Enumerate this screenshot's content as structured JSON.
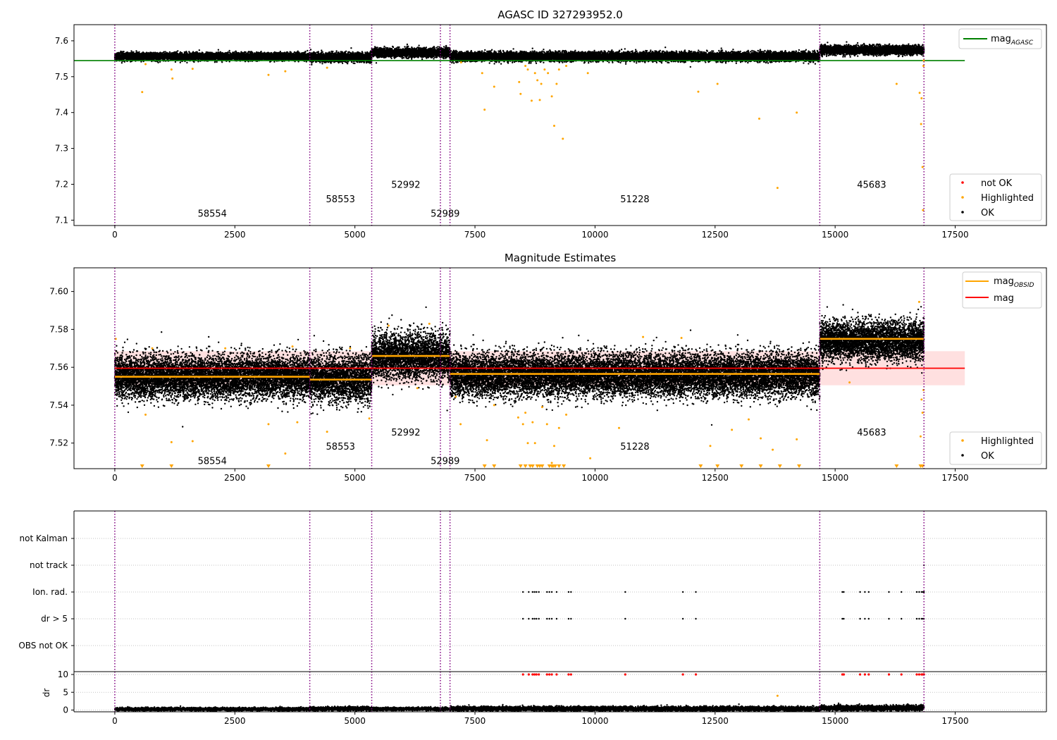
{
  "chart_data": [
    {
      "type": "scatter",
      "title": "AGASC ID 327293952.0",
      "xlim": [
        -850,
        19400
      ],
      "ylim": [
        7.085,
        7.645
      ],
      "xticks": [
        0,
        2500,
        5000,
        7500,
        10000,
        12500,
        15000,
        17500
      ],
      "xtick_labels": [
        "0",
        "2500",
        "5000",
        "7500",
        "10000",
        "12500",
        "15000",
        "17500"
      ],
      "yticks": [
        7.1,
        7.2,
        7.3,
        7.4,
        7.5,
        7.6
      ],
      "ytick_labels": [
        "7.1",
        "7.2",
        "7.3",
        "7.4",
        "7.5",
        "7.6"
      ],
      "obsid_boundaries": [
        0,
        4060,
        5350,
        6780,
        6980,
        14680,
        16850
      ],
      "obsid_labels": [
        {
          "text": "58554",
          "x": 2030,
          "y": 7.11
        },
        {
          "text": "58553",
          "x": 4700,
          "y": 7.15
        },
        {
          "text": "52992",
          "x": 6060,
          "y": 7.19
        },
        {
          "text": "52989",
          "x": 6880,
          "y": 7.11
        },
        {
          "text": "51228",
          "x": 10830,
          "y": 7.15
        },
        {
          "text": "45683",
          "x": 15760,
          "y": 7.19
        }
      ],
      "reference_line": {
        "name": "mag_AGASC",
        "y": 7.545,
        "x": [
          0,
          17700
        ],
        "color": "#008000"
      },
      "segments": [
        {
          "x": [
            0,
            4060
          ],
          "y": 7.556,
          "spread": 0.005
        },
        {
          "x": [
            4060,
            5350
          ],
          "y": 7.554,
          "spread": 0.006
        },
        {
          "x": [
            5350,
            6980
          ],
          "y": 7.567,
          "spread": 0.006
        },
        {
          "x": [
            6980,
            14680
          ],
          "y": 7.556,
          "spread": 0.006
        },
        {
          "x": [
            14680,
            16850
          ],
          "y": 7.574,
          "spread": 0.006
        }
      ],
      "highlighted_points": [
        {
          "x": 570,
          "y": 7.457
        },
        {
          "x": 640,
          "y": 7.535
        },
        {
          "x": 1180,
          "y": 7.52
        },
        {
          "x": 1200,
          "y": 7.495
        },
        {
          "x": 1620,
          "y": 7.522
        },
        {
          "x": 3200,
          "y": 7.505
        },
        {
          "x": 3550,
          "y": 7.515
        },
        {
          "x": 4420,
          "y": 7.525
        },
        {
          "x": 7210,
          "y": 7.54
        },
        {
          "x": 7650,
          "y": 7.51
        },
        {
          "x": 7700,
          "y": 7.408
        },
        {
          "x": 7900,
          "y": 7.472
        },
        {
          "x": 8420,
          "y": 7.485
        },
        {
          "x": 8450,
          "y": 7.452
        },
        {
          "x": 8550,
          "y": 7.53
        },
        {
          "x": 8600,
          "y": 7.52
        },
        {
          "x": 8680,
          "y": 7.433
        },
        {
          "x": 8750,
          "y": 7.51
        },
        {
          "x": 8800,
          "y": 7.49
        },
        {
          "x": 8850,
          "y": 7.435
        },
        {
          "x": 8880,
          "y": 7.48
        },
        {
          "x": 8950,
          "y": 7.52
        },
        {
          "x": 9020,
          "y": 7.51
        },
        {
          "x": 9100,
          "y": 7.445
        },
        {
          "x": 9150,
          "y": 7.363
        },
        {
          "x": 9200,
          "y": 7.48
        },
        {
          "x": 9250,
          "y": 7.52
        },
        {
          "x": 9330,
          "y": 7.327
        },
        {
          "x": 9400,
          "y": 7.53
        },
        {
          "x": 9850,
          "y": 7.51
        },
        {
          "x": 12150,
          "y": 7.458
        },
        {
          "x": 12550,
          "y": 7.48
        },
        {
          "x": 13420,
          "y": 7.383
        },
        {
          "x": 13800,
          "y": 7.19
        },
        {
          "x": 14200,
          "y": 7.4
        },
        {
          "x": 16280,
          "y": 7.48
        },
        {
          "x": 16760,
          "y": 7.455
        },
        {
          "x": 16790,
          "y": 7.368
        },
        {
          "x": 16820,
          "y": 7.248
        },
        {
          "x": 16830,
          "y": 7.128
        },
        {
          "x": 16840,
          "y": 7.53
        },
        {
          "x": 16845,
          "y": 7.545
        },
        {
          "x": 16800,
          "y": 7.44
        }
      ],
      "legend": [
        {
          "label": "mag",
          "subscript": "AGASC",
          "color": "#008000",
          "kind": "line"
        }
      ],
      "legend2": [
        {
          "label": "not OK",
          "color": "#ff0000",
          "kind": "marker"
        },
        {
          "label": "Highlighted",
          "color": "#ffa500",
          "kind": "marker"
        },
        {
          "label": "OK",
          "color": "#000000",
          "kind": "marker"
        }
      ]
    },
    {
      "type": "scatter",
      "title": "Magnitude Estimates",
      "xlim": [
        -850,
        19400
      ],
      "ylim": [
        7.5065,
        7.6125
      ],
      "xticks": [
        0,
        2500,
        5000,
        7500,
        10000,
        12500,
        15000,
        17500
      ],
      "xtick_labels": [
        "0",
        "2500",
        "5000",
        "7500",
        "10000",
        "12500",
        "15000",
        "17500"
      ],
      "yticks": [
        7.52,
        7.54,
        7.56,
        7.58,
        7.6
      ],
      "ytick_labels": [
        "7.52",
        "7.54",
        "7.56",
        "7.58",
        "7.60"
      ],
      "obsid_boundaries": [
        0,
        4060,
        5350,
        6780,
        6980,
        14680,
        16850
      ],
      "obsid_labels": [
        {
          "text": "58554",
          "x": 2030,
          "y": 7.509
        },
        {
          "text": "58553",
          "x": 4700,
          "y": 7.5165
        },
        {
          "text": "52992",
          "x": 6060,
          "y": 7.524
        },
        {
          "text": "52989",
          "x": 6880,
          "y": 7.509
        },
        {
          "text": "51228",
          "x": 10830,
          "y": 7.5165
        },
        {
          "text": "45683",
          "x": 15760,
          "y": 7.524
        }
      ],
      "mag_line": {
        "name": "mag",
        "y": 7.5595,
        "x": [
          0,
          17700
        ],
        "color": "#ff0000",
        "band": [
          7.5505,
          7.5685
        ]
      },
      "obsid_means": [
        {
          "x": [
            0,
            4060
          ],
          "y": 7.555
        },
        {
          "x": [
            4060,
            5350
          ],
          "y": 7.5535
        },
        {
          "x": [
            5350,
            6980
          ],
          "y": 7.566
        },
        {
          "x": [
            6980,
            14680
          ],
          "y": 7.5565
        },
        {
          "x": [
            14680,
            16850
          ],
          "y": 7.575
        }
      ],
      "segments": [
        {
          "x": [
            0,
            4060
          ],
          "y": 7.555,
          "spread": 0.0055
        },
        {
          "x": [
            4060,
            5350
          ],
          "y": 7.554,
          "spread": 0.006
        },
        {
          "x": [
            5350,
            6980
          ],
          "y": 7.566,
          "spread": 0.006
        },
        {
          "x": [
            6980,
            14680
          ],
          "y": 7.556,
          "spread": 0.0055
        },
        {
          "x": [
            14680,
            16850
          ],
          "y": 7.574,
          "spread": 0.005
        }
      ],
      "highlighted_points": [
        {
          "x": 20,
          "y": 7.575
        },
        {
          "x": 640,
          "y": 7.535
        },
        {
          "x": 780,
          "y": 7.57
        },
        {
          "x": 1180,
          "y": 7.5205
        },
        {
          "x": 1620,
          "y": 7.521
        },
        {
          "x": 2300,
          "y": 7.57
        },
        {
          "x": 3200,
          "y": 7.53
        },
        {
          "x": 3550,
          "y": 7.5145
        },
        {
          "x": 3700,
          "y": 7.571
        },
        {
          "x": 3800,
          "y": 7.531
        },
        {
          "x": 4420,
          "y": 7.526
        },
        {
          "x": 4900,
          "y": 7.57
        },
        {
          "x": 5300,
          "y": 7.533
        },
        {
          "x": 5700,
          "y": 7.582
        },
        {
          "x": 6300,
          "y": 7.549
        },
        {
          "x": 6550,
          "y": 7.583
        },
        {
          "x": 7100,
          "y": 7.5445
        },
        {
          "x": 7200,
          "y": 7.53
        },
        {
          "x": 7750,
          "y": 7.5215
        },
        {
          "x": 7900,
          "y": 7.54
        },
        {
          "x": 8400,
          "y": 7.5335
        },
        {
          "x": 8500,
          "y": 7.53
        },
        {
          "x": 8550,
          "y": 7.536
        },
        {
          "x": 8600,
          "y": 7.52
        },
        {
          "x": 8700,
          "y": 7.531
        },
        {
          "x": 8750,
          "y": 7.52
        },
        {
          "x": 8900,
          "y": 7.539
        },
        {
          "x": 9000,
          "y": 7.53
        },
        {
          "x": 9100,
          "y": 7.5095
        },
        {
          "x": 9150,
          "y": 7.5185
        },
        {
          "x": 9250,
          "y": 7.528
        },
        {
          "x": 9400,
          "y": 7.535
        },
        {
          "x": 9900,
          "y": 7.512
        },
        {
          "x": 10500,
          "y": 7.528
        },
        {
          "x": 11000,
          "y": 7.576
        },
        {
          "x": 11800,
          "y": 7.5755
        },
        {
          "x": 12400,
          "y": 7.5185
        },
        {
          "x": 12850,
          "y": 7.527
        },
        {
          "x": 13200,
          "y": 7.5325
        },
        {
          "x": 13450,
          "y": 7.5225
        },
        {
          "x": 13700,
          "y": 7.5165
        },
        {
          "x": 14200,
          "y": 7.522
        },
        {
          "x": 15300,
          "y": 7.552
        },
        {
          "x": 16750,
          "y": 7.5945
        },
        {
          "x": 16780,
          "y": 7.5235
        },
        {
          "x": 16800,
          "y": 7.543
        },
        {
          "x": 16820,
          "y": 7.536
        },
        {
          "x": 16840,
          "y": 7.548
        }
      ],
      "clipped_highlighted_x": [
        570,
        1180,
        3200,
        7700,
        7900,
        8450,
        8550,
        8650,
        8700,
        8800,
        8850,
        8900,
        9050,
        9100,
        9130,
        9170,
        9250,
        9350,
        12200,
        12550,
        13050,
        13450,
        13850,
        14250,
        16280,
        16780,
        16820
      ],
      "legend": [
        {
          "label": "mag",
          "subscript": "OBSID",
          "color": "#ffa500",
          "kind": "line"
        },
        {
          "label": "mag",
          "subscript": "",
          "color": "#ff0000",
          "kind": "line"
        }
      ],
      "legend2": [
        {
          "label": "Highlighted",
          "color": "#ffa500",
          "kind": "marker"
        },
        {
          "label": "OK",
          "color": "#000000",
          "kind": "marker"
        }
      ]
    },
    {
      "type": "scatter",
      "title": "",
      "xlim": [
        -850,
        19400
      ],
      "categories": [
        "OBS not OK",
        "dr > 5",
        "Ion. rad.",
        "not track",
        "not Kalman"
      ],
      "obsid_boundaries": [
        0,
        4060,
        5350,
        6780,
        6980,
        14680,
        16850
      ],
      "flag_x": [
        8500,
        8620,
        8700,
        8740,
        8780,
        8830,
        9000,
        9050,
        9100,
        9200,
        9450,
        9500,
        10630,
        11830,
        12100,
        15150,
        15180,
        15520,
        15620,
        15700,
        16120,
        16380,
        16700,
        16750,
        16800,
        16830,
        16850
      ],
      "not_track_x": [
        16850
      ],
      "color": "#000000"
    },
    {
      "type": "scatter",
      "title": "",
      "xlim": [
        -850,
        19400
      ],
      "ylim": [
        -0.5,
        10.8
      ],
      "ylabel": "dr",
      "yticks": [
        0,
        5,
        10
      ],
      "ytick_labels": [
        "0",
        "5",
        "10"
      ],
      "xticks": [
        0,
        2500,
        5000,
        7500,
        10000,
        12500,
        15000,
        17500
      ],
      "xtick_labels": [
        "0",
        "2500",
        "5000",
        "7500",
        "10000",
        "12500",
        "15000",
        "17500"
      ],
      "obsid_boundaries": [
        0,
        4060,
        5350,
        6780,
        6980,
        14680,
        16850
      ],
      "not_ok_x": [
        8500,
        8620,
        8700,
        8740,
        8780,
        8830,
        9000,
        9050,
        9100,
        9200,
        9450,
        9500,
        10630,
        11830,
        12100,
        15150,
        15180,
        15520,
        15620,
        15700,
        16120,
        16380,
        16700,
        16750,
        16800,
        16830,
        16850
      ],
      "not_ok_y": 10,
      "highlighted_points": [
        {
          "x": 13800,
          "y": 4
        }
      ],
      "segments": [
        {
          "x": [
            0,
            4060
          ],
          "y": 0.25,
          "spread": 0.2
        },
        {
          "x": [
            4060,
            5350
          ],
          "y": 0.35,
          "spread": 0.25
        },
        {
          "x": [
            5350,
            6980
          ],
          "y": 0.3,
          "spread": 0.2
        },
        {
          "x": [
            6980,
            14680
          ],
          "y": 0.35,
          "spread": 0.3
        },
        {
          "x": [
            14680,
            16850
          ],
          "y": 0.55,
          "spread": 0.35
        }
      ]
    }
  ]
}
